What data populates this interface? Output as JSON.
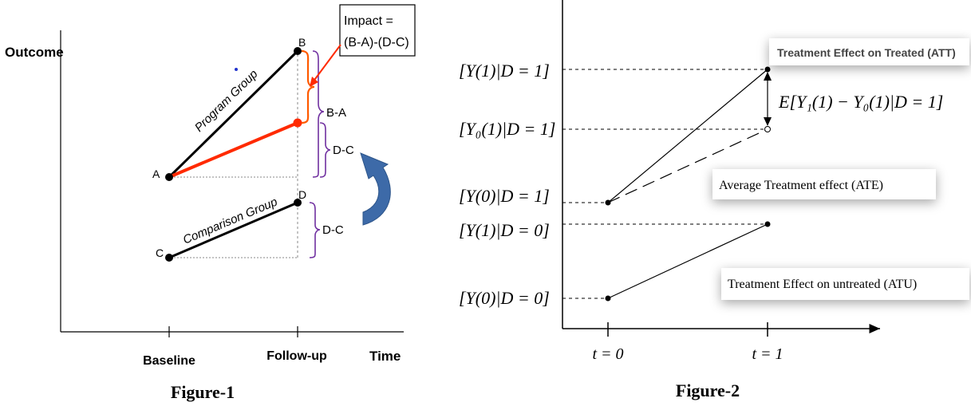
{
  "figure1": {
    "caption": "Figure-1",
    "y_axis_label": "Outcome",
    "x_axis_label": "Time",
    "x_ticks": [
      "Baseline",
      "Follow-up"
    ],
    "points": {
      "a": "A",
      "b": "B",
      "c": "C",
      "d": "D"
    },
    "program_label": "Program Group",
    "comparison_label": "Comparison Group",
    "impact_box": {
      "line1": "Impact =",
      "line2": "(B-A)-(D-C)"
    },
    "brace_labels": {
      "ba": "B-A",
      "dc_upper": "D-C",
      "dc_lower": "D-C"
    },
    "colors": {
      "program": "#000000",
      "counterfactual": "#ff2a00",
      "impact_brace": "#ff5a00",
      "brace": "#7030a0",
      "arrow": "#3d6aa8"
    }
  },
  "figure2": {
    "caption": "Figure-2",
    "y_labels": {
      "y1_d1": "[Y(1)|D = 1]",
      "y0_1_d1": "[Y₀(1)|D = 1]",
      "y0_d1": "[Y(0)|D = 1]",
      "y1_d0": "[Y(1)|D = 0]",
      "y0_d0": "[Y(0)|D = 0]"
    },
    "x_ticks": [
      "t = 0",
      "t = 1"
    ],
    "effect_formula": "E[Y₁(1) − Y₀(1)|D = 1]",
    "callouts": {
      "att": "Treatment Effect on Treated (ATT)",
      "ate": "Average Treatment effect (ATE)",
      "atu": "Treatment Effect on untreated (ATU)"
    }
  }
}
